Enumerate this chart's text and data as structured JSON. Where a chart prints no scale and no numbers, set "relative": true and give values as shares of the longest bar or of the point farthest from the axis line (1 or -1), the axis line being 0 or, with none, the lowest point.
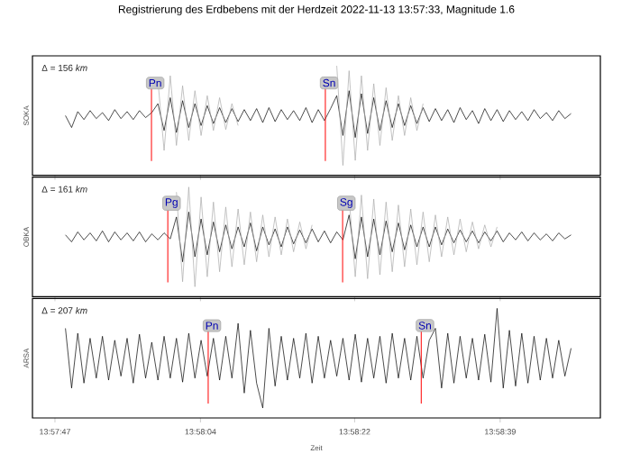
{
  "chart_data": [
    {
      "type": "line",
      "title": "Registrierung des Erdbebens mit der Herdzeit 2022-11-13 13:57:33, Magnitude 1.6",
      "ylabel": "SOKA",
      "relative": true,
      "tick_labels": false,
      "annotations": [
        "Δ = 156 *km*"
      ],
      "xlim": [
        13.96233,
        13.98075
      ],
      "xticks": [
        {
          "value": 13.96306,
          "label": null
        },
        {
          "value": 13.96778,
          "label": null
        },
        {
          "value": 13.97278,
          "label": null
        },
        {
          "value": 13.9775,
          "label": null
        }
      ],
      "ref_lines": [
        {
          "axis": "x",
          "value": 13.96619,
          "label": "Pn",
          "color": "#ff0000"
        },
        {
          "axis": "x",
          "value": 13.97183,
          "label": "Sn",
          "color": "#ff0000"
        }
      ],
      "x": [
        13.9634,
        13.9636,
        13.9638,
        13.964,
        13.9642,
        13.9644,
        13.9646,
        13.9648,
        13.965,
        13.9652,
        13.9654,
        13.9656,
        13.9658,
        13.966,
        13.9662,
        13.9664,
        13.9666,
        13.9668,
        13.967,
        13.9672,
        13.9674,
        13.9676,
        13.9678,
        13.968,
        13.9682,
        13.9684,
        13.9686,
        13.9688,
        13.969,
        13.9692,
        13.9694,
        13.9696,
        13.9698,
        13.97,
        13.9702,
        13.9704,
        13.9706,
        13.9708,
        13.971,
        13.9712,
        13.9714,
        13.9716,
        13.9718,
        13.972,
        13.9722,
        13.9724,
        13.9726,
        13.9728,
        13.973,
        13.9732,
        13.9734,
        13.9736,
        13.9738,
        13.974,
        13.9742,
        13.9744,
        13.9746,
        13.9748,
        13.975,
        13.9752,
        13.9754,
        13.9756,
        13.9758,
        13.976,
        13.9762,
        13.9764,
        13.9766,
        13.9768,
        13.977,
        13.9772,
        13.9774,
        13.9776,
        13.9778,
        13.978,
        13.9782,
        13.9784,
        13.9786,
        13.9788,
        13.979,
        13.9792,
        13.9794,
        13.9796,
        13.9798
      ],
      "series": [
        {
          "color": "#000000",
          "values": [
            0.5,
            0.38,
            0.54,
            0.46,
            0.55,
            0.47,
            0.53,
            0.45,
            0.56,
            0.47,
            0.54,
            0.46,
            0.55,
            0.48,
            0.53,
            0.62,
            0.35,
            0.68,
            0.33,
            0.65,
            0.38,
            0.62,
            0.4,
            0.6,
            0.42,
            0.58,
            0.43,
            0.57,
            0.44,
            0.56,
            0.45,
            0.57,
            0.43,
            0.58,
            0.44,
            0.56,
            0.46,
            0.55,
            0.45,
            0.58,
            0.43,
            0.56,
            0.45,
            0.57,
            0.7,
            0.3,
            0.75,
            0.28,
            0.72,
            0.32,
            0.68,
            0.35,
            0.65,
            0.38,
            0.62,
            0.4,
            0.6,
            0.42,
            0.58,
            0.44,
            0.57,
            0.45,
            0.56,
            0.43,
            0.58,
            0.46,
            0.55,
            0.42,
            0.57,
            0.45,
            0.56,
            0.44,
            0.55,
            0.46,
            0.54,
            0.45,
            0.56,
            0.47,
            0.53,
            0.45,
            0.55,
            0.47,
            0.52
          ]
        },
        {
          "color": "#aaaaaa",
          "values": [
            null,
            null,
            null,
            null,
            null,
            null,
            null,
            null,
            null,
            null,
            null,
            null,
            null,
            null,
            null,
            0.85,
            0.15,
            0.9,
            0.2,
            0.8,
            0.25,
            0.75,
            0.3,
            0.7,
            0.35,
            0.68,
            0.36,
            0.62,
            0.4,
            null,
            null,
            null,
            null,
            null,
            null,
            null,
            null,
            null,
            null,
            null,
            null,
            null,
            null,
            null,
            1.0,
            0.0,
            0.95,
            0.05,
            0.9,
            0.15,
            0.82,
            0.2,
            0.78,
            0.25,
            0.7,
            0.3,
            0.68,
            0.35,
            0.62,
            null,
            null,
            null,
            null,
            null,
            null,
            null,
            null,
            null,
            null,
            null,
            null,
            null,
            null,
            null,
            null,
            null,
            null,
            null,
            null,
            null,
            null,
            null,
            null
          ]
        }
      ]
    },
    {
      "type": "line",
      "ylabel": "OBKA",
      "relative": true,
      "tick_labels": false,
      "annotations": [
        "Δ = 161 *km*"
      ],
      "xlim": [
        13.96233,
        13.98075
      ],
      "xticks": [
        {
          "value": 13.96306,
          "label": null
        },
        {
          "value": 13.96778,
          "label": null
        },
        {
          "value": 13.97278,
          "label": null
        },
        {
          "value": 13.9775,
          "label": null
        }
      ],
      "ref_lines": [
        {
          "axis": "x",
          "value": 13.96672,
          "label": "Pg",
          "color": "#ff0000"
        },
        {
          "axis": "x",
          "value": 13.97239,
          "label": "Sg",
          "color": "#ff0000"
        }
      ],
      "x": [
        13.9634,
        13.9636,
        13.9638,
        13.964,
        13.9642,
        13.9644,
        13.9646,
        13.9648,
        13.965,
        13.9652,
        13.9654,
        13.9656,
        13.9658,
        13.966,
        13.9662,
        13.9664,
        13.9666,
        13.9668,
        13.967,
        13.9672,
        13.9674,
        13.9676,
        13.9678,
        13.968,
        13.9682,
        13.9684,
        13.9686,
        13.9688,
        13.969,
        13.9692,
        13.9694,
        13.9696,
        13.9698,
        13.97,
        13.9702,
        13.9704,
        13.9706,
        13.9708,
        13.971,
        13.9712,
        13.9714,
        13.9716,
        13.9718,
        13.972,
        13.9722,
        13.9724,
        13.9726,
        13.9728,
        13.973,
        13.9732,
        13.9734,
        13.9736,
        13.9738,
        13.974,
        13.9742,
        13.9744,
        13.9746,
        13.9748,
        13.975,
        13.9752,
        13.9754,
        13.9756,
        13.9758,
        13.976,
        13.9762,
        13.9764,
        13.9766,
        13.9768,
        13.977,
        13.9772,
        13.9774,
        13.9776,
        13.9778,
        13.978,
        13.9782,
        13.9784,
        13.9786,
        13.9788,
        13.979,
        13.9792,
        13.9794,
        13.9796,
        13.9798
      ],
      "series": [
        {
          "color": "#000000",
          "values": [
            0.52,
            0.45,
            0.55,
            0.47,
            0.54,
            0.46,
            0.56,
            0.45,
            0.55,
            0.47,
            0.54,
            0.46,
            0.55,
            0.45,
            0.53,
            0.47,
            0.54,
            0.48,
            0.7,
            0.25,
            0.75,
            0.3,
            0.68,
            0.32,
            0.65,
            0.35,
            0.62,
            0.38,
            0.6,
            0.4,
            0.64,
            0.36,
            0.6,
            0.42,
            0.58,
            0.4,
            0.6,
            0.43,
            0.57,
            0.44,
            0.58,
            0.45,
            0.56,
            0.44,
            0.55,
            0.47,
            0.72,
            0.28,
            0.7,
            0.3,
            0.68,
            0.32,
            0.66,
            0.35,
            0.64,
            0.37,
            0.62,
            0.4,
            0.6,
            0.4,
            0.6,
            0.42,
            0.58,
            0.44,
            0.57,
            0.45,
            0.56,
            0.44,
            0.55,
            0.46,
            0.56,
            0.45,
            0.54,
            0.47,
            0.55,
            0.46,
            0.54,
            0.47,
            0.53,
            0.46,
            0.54,
            0.48,
            0.52
          ]
        },
        {
          "color": "#aaaaaa",
          "values": [
            null,
            null,
            null,
            null,
            null,
            null,
            null,
            null,
            null,
            null,
            null,
            null,
            null,
            null,
            null,
            null,
            null,
            null,
            0.95,
            0.05,
            1.0,
            0.0,
            0.9,
            0.1,
            0.85,
            0.15,
            0.8,
            0.2,
            0.78,
            0.22,
            0.75,
            0.25,
            0.72,
            0.3,
            0.7,
            0.32,
            0.68,
            0.35,
            0.65,
            0.38,
            0.62,
            null,
            null,
            null,
            null,
            null,
            0.9,
            0.1,
            0.92,
            0.08,
            0.88,
            0.12,
            0.85,
            0.15,
            0.82,
            0.2,
            0.78,
            0.22,
            0.75,
            0.25,
            0.72,
            0.3,
            0.7,
            0.32,
            0.68,
            0.35,
            0.65,
            0.38,
            0.62,
            0.4,
            0.6,
            null,
            null,
            null,
            null,
            null,
            null,
            null,
            null,
            null,
            null,
            null,
            null
          ]
        }
      ]
    },
    {
      "type": "line",
      "ylabel": "ARSA",
      "xlabel": "Zeit",
      "relative": true,
      "tick_labels": "x",
      "annotations": [
        "Δ = 207 *km*"
      ],
      "xlim": [
        13.96233,
        13.98075
      ],
      "xticks": [
        {
          "value": 13.96306,
          "label": "13:57:47"
        },
        {
          "value": 13.96778,
          "label": "13:58:04"
        },
        {
          "value": 13.97278,
          "label": "13:58:22"
        },
        {
          "value": 13.9775,
          "label": "13:58:39"
        }
      ],
      "ref_lines": [
        {
          "axis": "x",
          "value": 13.96803,
          "label": "Pn",
          "color": "#ff0000"
        },
        {
          "axis": "x",
          "value": 13.97494,
          "label": "Sn",
          "color": "#ff0000"
        }
      ],
      "x": [
        13.9634,
        13.9636,
        13.9638,
        13.964,
        13.9642,
        13.9644,
        13.9646,
        13.9648,
        13.965,
        13.9652,
        13.9654,
        13.9656,
        13.9658,
        13.966,
        13.9662,
        13.9664,
        13.9666,
        13.9668,
        13.967,
        13.9672,
        13.9674,
        13.9676,
        13.9678,
        13.968,
        13.9682,
        13.9684,
        13.9686,
        13.9688,
        13.969,
        13.9692,
        13.9694,
        13.9696,
        13.9698,
        13.97,
        13.9702,
        13.9704,
        13.9706,
        13.9708,
        13.971,
        13.9712,
        13.9714,
        13.9716,
        13.9718,
        13.972,
        13.9722,
        13.9724,
        13.9726,
        13.9728,
        13.973,
        13.9732,
        13.9734,
        13.9736,
        13.9738,
        13.974,
        13.9742,
        13.9744,
        13.9746,
        13.9748,
        13.975,
        13.9752,
        13.9754,
        13.9756,
        13.9758,
        13.976,
        13.9762,
        13.9764,
        13.9766,
        13.9768,
        13.977,
        13.9772,
        13.9774,
        13.9776,
        13.9778,
        13.978,
        13.9782,
        13.9784,
        13.9786,
        13.9788,
        13.979,
        13.9792,
        13.9794,
        13.9796,
        13.9798
      ],
      "series": [
        {
          "color": "#000000",
          "values": [
            0.8,
            0.2,
            0.75,
            0.25,
            0.7,
            0.3,
            0.72,
            0.28,
            0.68,
            0.32,
            0.7,
            0.25,
            0.74,
            0.3,
            0.66,
            0.28,
            0.72,
            0.3,
            0.7,
            0.26,
            0.75,
            0.3,
            0.68,
            0.32,
            0.7,
            0.28,
            0.72,
            0.3,
            0.85,
            0.15,
            0.78,
            0.25,
            0.0,
            0.8,
            0.22,
            0.72,
            0.28,
            0.7,
            0.3,
            0.75,
            0.25,
            0.72,
            0.3,
            0.68,
            0.32,
            0.7,
            0.28,
            0.74,
            0.26,
            0.7,
            0.3,
            0.72,
            0.25,
            0.75,
            0.3,
            0.7,
            0.28,
            0.72,
            0.3,
            0.68,
            0.8,
            0.2,
            0.75,
            0.25,
            0.72,
            0.3,
            0.7,
            0.28,
            0.74,
            0.26,
            1.0,
            0.2,
            0.78,
            0.22,
            0.75,
            0.25,
            0.72,
            0.28,
            0.7,
            0.3,
            0.68,
            0.32,
            0.6
          ]
        }
      ]
    }
  ]
}
